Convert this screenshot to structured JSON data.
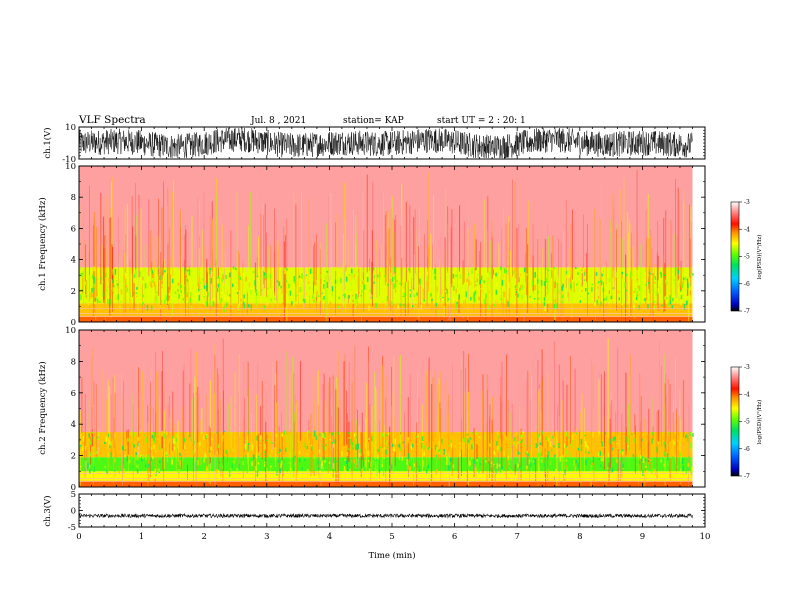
{
  "header": {
    "title": "VLF Spectra",
    "date": "Jul. 8 , 2021",
    "station": "station= KAP",
    "start": "start UT = 2 : 20: 1"
  },
  "chart_data": [
    {
      "type": "line",
      "name": "ch1-waveform",
      "ylabel": "ch.1(V)",
      "ylim": [
        -10,
        10
      ],
      "yticks": [
        "10",
        "-10"
      ],
      "xlim": [
        0,
        10
      ],
      "description_level": "dense noise filling most of the range, roughly -8 to +9 V"
    },
    {
      "type": "heatmap",
      "name": "ch1-spectrogram",
      "ylabel": "ch.1 Frequency (kHz)",
      "ylim": [
        0,
        10
      ],
      "yticks": [
        "0",
        "2",
        "4",
        "6",
        "8",
        "10"
      ],
      "xlim": [
        0,
        10
      ],
      "xticks": [
        "0",
        "1",
        "2",
        "3",
        "4",
        "5",
        "6",
        "7",
        "8",
        "9",
        "10"
      ],
      "data_extent_x": [
        0,
        9.8
      ],
      "bands": [
        {
          "fmin": 0.0,
          "fmax": 0.4,
          "level": -4.0
        },
        {
          "fmin": 0.4,
          "fmax": 1.2,
          "level": -4.3
        },
        {
          "fmin": 1.2,
          "fmax": 3.5,
          "level": -4.6
        },
        {
          "fmin": 3.5,
          "fmax": 10.0,
          "level": -3.3
        }
      ],
      "colorbar": {
        "label": "log(PSD)(V²/Hz)",
        "min": -7,
        "max": -3,
        "ticks": [
          "-3",
          "-4",
          "-5",
          "-6",
          "-7"
        ]
      }
    },
    {
      "type": "heatmap",
      "name": "ch2-spectrogram",
      "ylabel": "ch.2 Frequency (kHz)",
      "ylim": [
        0,
        10
      ],
      "yticks": [
        "0",
        "2",
        "4",
        "6",
        "8",
        "10"
      ],
      "xlim": [
        0,
        10
      ],
      "xticks": [
        "0",
        "1",
        "2",
        "3",
        "4",
        "5",
        "6",
        "7",
        "8",
        "9",
        "10"
      ],
      "data_extent_x": [
        0,
        9.8
      ],
      "bands": [
        {
          "fmin": 0.0,
          "fmax": 0.4,
          "level": -4.0
        },
        {
          "fmin": 0.4,
          "fmax": 1.0,
          "level": -4.5
        },
        {
          "fmin": 1.0,
          "fmax": 1.9,
          "level": -5.0
        },
        {
          "fmin": 1.9,
          "fmax": 3.5,
          "level": -4.3
        },
        {
          "fmin": 3.5,
          "fmax": 10.0,
          "level": -3.3
        }
      ],
      "colorbar": {
        "label": "log(PSD)(V²/Hz)",
        "min": -7,
        "max": -3,
        "ticks": [
          "-3",
          "-4",
          "-5",
          "-6",
          "-7"
        ]
      }
    },
    {
      "type": "line",
      "name": "ch3-waveform",
      "ylabel": "ch.3(V)",
      "ylim": [
        -5,
        5
      ],
      "yticks": [
        "5",
        "0",
        "-5"
      ],
      "xlim": [
        0,
        10
      ],
      "description_level": "flat band near -1.6 V with small noise",
      "xlabel": "Time (min)",
      "xticks": [
        "0",
        "1",
        "2",
        "3",
        "4",
        "5",
        "6",
        "7",
        "8",
        "9",
        "10"
      ]
    }
  ]
}
